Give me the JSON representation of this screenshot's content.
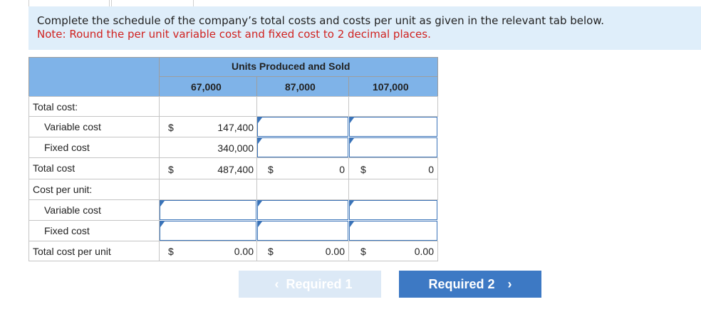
{
  "instructions": {
    "main": "Complete the schedule of the company’s total costs and costs per unit as given in the relevant tab below.",
    "note": "Note: Round the per unit variable cost and fixed cost to 2 decimal places."
  },
  "table": {
    "group_header": "Units Produced and Sold",
    "columns": [
      "67,000",
      "87,000",
      "107,000"
    ],
    "rows": {
      "total_cost_section": "Total cost:",
      "variable_cost": "Variable cost",
      "fixed_cost": "Fixed cost",
      "total_cost": "Total cost",
      "cost_per_unit_section": "Cost per unit:",
      "variable_cost_unit": "Variable cost",
      "fixed_cost_unit": "Fixed cost",
      "total_cost_per_unit": "Total cost per unit"
    },
    "currency": "$",
    "values": {
      "variable_67": "147,400",
      "fixed_67": "340,000",
      "total_67": "487,400",
      "total_87": "0",
      "total_107": "0",
      "unit_total_67": "0.00",
      "unit_total_87": "0.00",
      "unit_total_107": "0.00"
    }
  },
  "nav": {
    "prev_label": "Required 1",
    "next_label": "Required 2",
    "prev_chevron": "‹",
    "next_chevron": "›"
  },
  "colors": {
    "header_blue": "#7fb3e8",
    "instruction_bg": "#dfeefa",
    "note_red": "#d0211f",
    "input_border": "#3a73b8",
    "next_button": "#3d79c4",
    "prev_button_disabled": "#dce9f6"
  }
}
